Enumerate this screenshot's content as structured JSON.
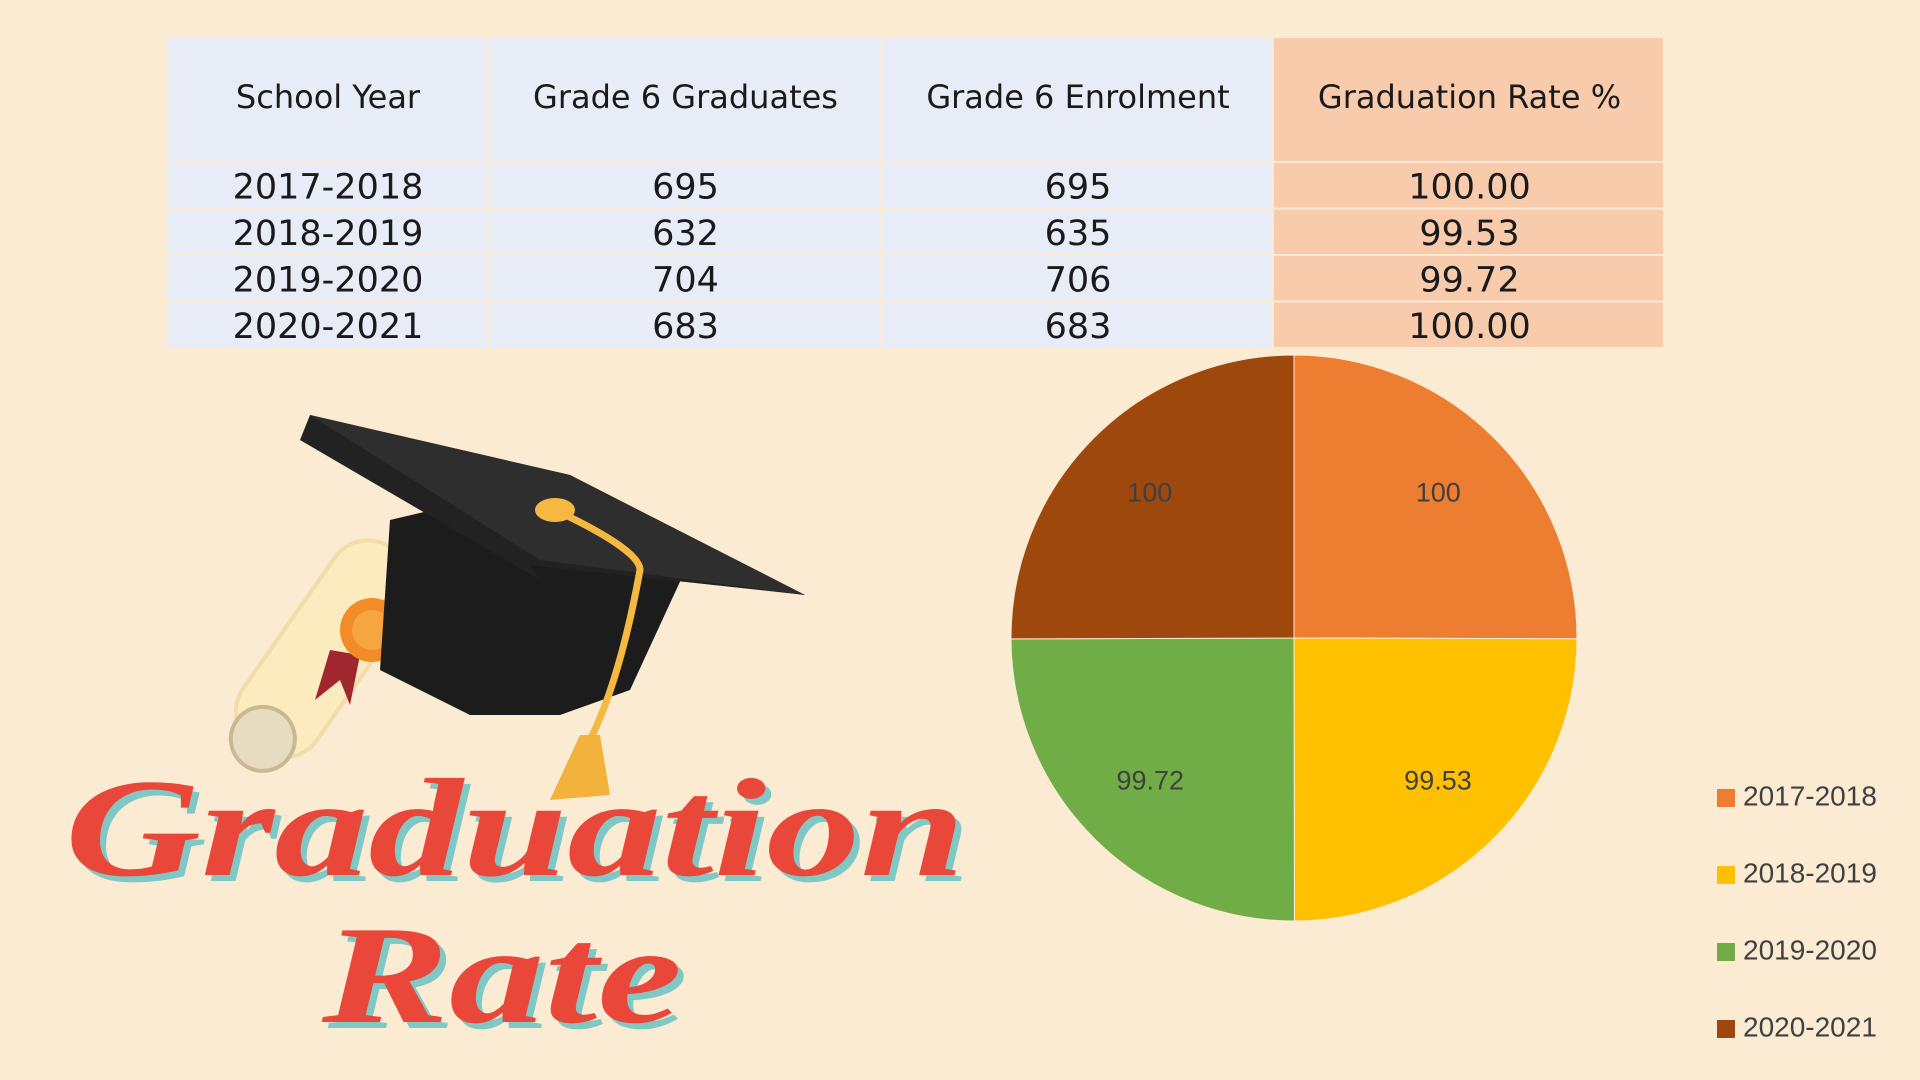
{
  "table": {
    "header": [
      "School Year",
      "Grade 6 Graduates",
      "Grade 6 Enrolment",
      "Graduation Rate %"
    ],
    "rows": [
      [
        "2017-2018",
        "695",
        "695",
        "100.00"
      ],
      [
        "2018-2019",
        "632",
        "635",
        "99.53"
      ],
      [
        "2019-2020",
        "704",
        "706",
        "99.72"
      ],
      [
        "2020-2021",
        "683",
        "683",
        "100.00"
      ]
    ]
  },
  "title": {
    "lines": [
      "Graduation",
      "Rate"
    ]
  },
  "chart_data": {
    "type": "pie",
    "categories": [
      "2017-2018",
      "2018-2019",
      "2019-2020",
      "2020-2021"
    ],
    "values": [
      100,
      99.53,
      99.72,
      100
    ],
    "colors": [
      "#ED7D31",
      "#FFC000",
      "#70AD47",
      "#9E480E"
    ],
    "legend": "right"
  }
}
